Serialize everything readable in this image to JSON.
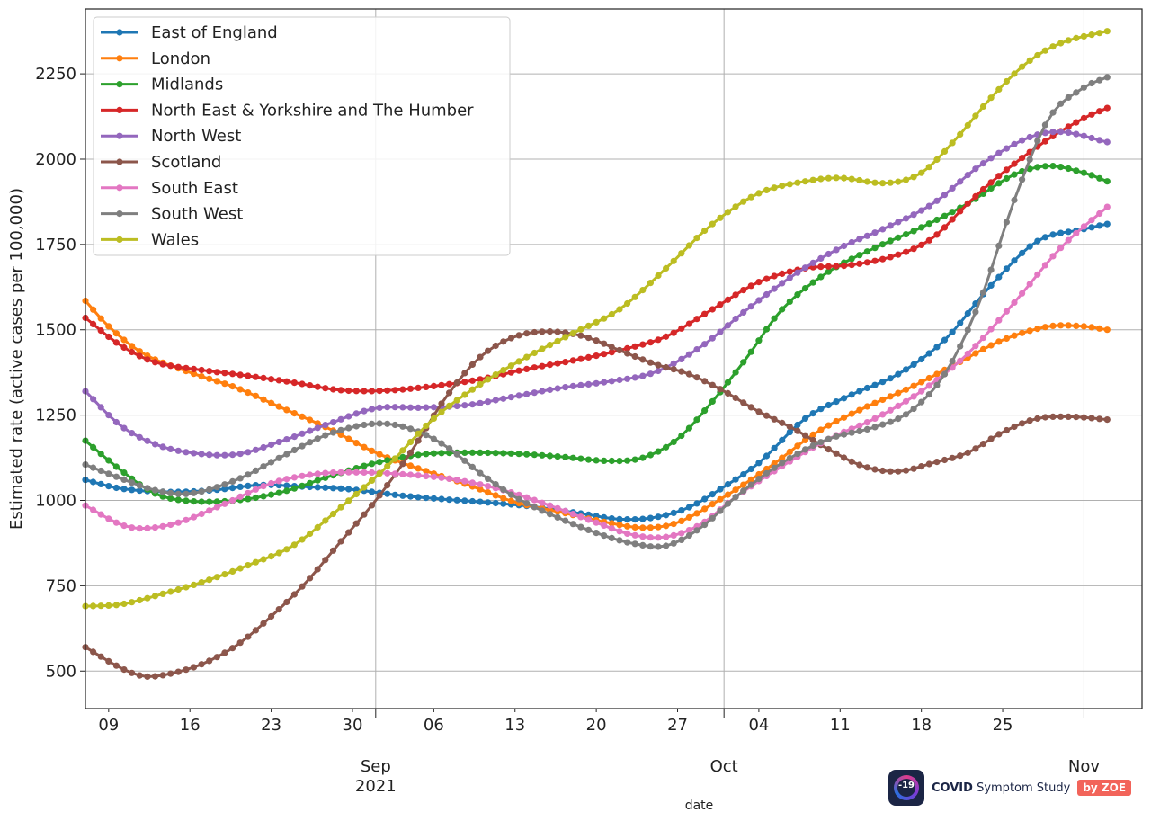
{
  "chart_data": {
    "type": "line",
    "title": "",
    "xlabel": "date",
    "ylabel": "Estimated rate (active cases per 100,000)",
    "x_start": "2021-08-07",
    "x_end": "2021-11-06",
    "ylim": [
      390,
      2440
    ],
    "yticks": [
      500,
      750,
      1000,
      1250,
      1500,
      1750,
      2000,
      2250
    ],
    "grid": true,
    "legend_position": "top-left",
    "x_minor_ticks": [
      {
        "date": "2021-08-09",
        "label": "09"
      },
      {
        "date": "2021-08-16",
        "label": "16"
      },
      {
        "date": "2021-08-23",
        "label": "23"
      },
      {
        "date": "2021-08-30",
        "label": "30"
      },
      {
        "date": "2021-09-06",
        "label": "06"
      },
      {
        "date": "2021-09-13",
        "label": "13"
      },
      {
        "date": "2021-09-20",
        "label": "20"
      },
      {
        "date": "2021-09-27",
        "label": "27"
      },
      {
        "date": "2021-10-04",
        "label": "04"
      },
      {
        "date": "2021-10-11",
        "label": "11"
      },
      {
        "date": "2021-10-18",
        "label": "18"
      },
      {
        "date": "2021-10-25",
        "label": "25"
      }
    ],
    "x_major_ticks": [
      {
        "date": "2021-09-01",
        "label": "Sep",
        "label2": "2021"
      },
      {
        "date": "2021-10-01",
        "label": "Oct",
        "label2": ""
      },
      {
        "date": "2021-11-01",
        "label": "Nov",
        "label2": ""
      }
    ],
    "series": [
      {
        "name": "East of England",
        "color": "#1f77b4",
        "points": [
          [
            "2021-08-07",
            1060
          ],
          [
            "2021-08-10",
            1035
          ],
          [
            "2021-08-14",
            1025
          ],
          [
            "2021-08-18",
            1030
          ],
          [
            "2021-08-22",
            1045
          ],
          [
            "2021-08-26",
            1040
          ],
          [
            "2021-08-30",
            1032
          ],
          [
            "2021-09-03",
            1015
          ],
          [
            "2021-09-07",
            1003
          ],
          [
            "2021-09-11",
            993
          ],
          [
            "2021-09-15",
            980
          ],
          [
            "2021-09-19",
            960
          ],
          [
            "2021-09-22",
            945
          ],
          [
            "2021-09-25",
            950
          ],
          [
            "2021-09-28",
            980
          ],
          [
            "2021-10-01",
            1040
          ],
          [
            "2021-10-04",
            1110
          ],
          [
            "2021-10-08",
            1240
          ],
          [
            "2021-10-12",
            1310
          ],
          [
            "2021-10-16",
            1370
          ],
          [
            "2021-10-20",
            1470
          ],
          [
            "2021-10-24",
            1630
          ],
          [
            "2021-10-28",
            1760
          ],
          [
            "2021-11-01",
            1795
          ],
          [
            "2021-11-03",
            1810
          ]
        ]
      },
      {
        "name": "London",
        "color": "#ff7f0e",
        "points": [
          [
            "2021-08-07",
            1585
          ],
          [
            "2021-08-09",
            1510
          ],
          [
            "2021-08-12",
            1430
          ],
          [
            "2021-08-16",
            1375
          ],
          [
            "2021-08-20",
            1330
          ],
          [
            "2021-08-24",
            1270
          ],
          [
            "2021-08-28",
            1210
          ],
          [
            "2021-09-01",
            1140
          ],
          [
            "2021-09-05",
            1090
          ],
          [
            "2021-09-09",
            1045
          ],
          [
            "2021-09-13",
            995
          ],
          [
            "2021-09-17",
            965
          ],
          [
            "2021-09-21",
            935
          ],
          [
            "2021-09-24",
            920
          ],
          [
            "2021-09-27",
            935
          ],
          [
            "2021-10-01",
            1010
          ],
          [
            "2021-10-05",
            1100
          ],
          [
            "2021-10-09",
            1200
          ],
          [
            "2021-10-13",
            1270
          ],
          [
            "2021-10-17",
            1330
          ],
          [
            "2021-10-21",
            1400
          ],
          [
            "2021-10-25",
            1470
          ],
          [
            "2021-10-29",
            1510
          ],
          [
            "2021-11-01",
            1510
          ],
          [
            "2021-11-03",
            1500
          ]
        ]
      },
      {
        "name": "Midlands",
        "color": "#2ca02c",
        "points": [
          [
            "2021-08-07",
            1175
          ],
          [
            "2021-08-10",
            1090
          ],
          [
            "2021-08-13",
            1020
          ],
          [
            "2021-08-16",
            998
          ],
          [
            "2021-08-20",
            1000
          ],
          [
            "2021-08-24",
            1025
          ],
          [
            "2021-08-28",
            1070
          ],
          [
            "2021-09-01",
            1110
          ],
          [
            "2021-09-05",
            1135
          ],
          [
            "2021-09-09",
            1140
          ],
          [
            "2021-09-13",
            1137
          ],
          [
            "2021-09-17",
            1128
          ],
          [
            "2021-09-21",
            1116
          ],
          [
            "2021-09-24",
            1125
          ],
          [
            "2021-09-27",
            1180
          ],
          [
            "2021-09-30",
            1290
          ],
          [
            "2021-10-03",
            1420
          ],
          [
            "2021-10-06",
            1560
          ],
          [
            "2021-10-10",
            1670
          ],
          [
            "2021-10-14",
            1740
          ],
          [
            "2021-10-18",
            1800
          ],
          [
            "2021-10-22",
            1870
          ],
          [
            "2021-10-26",
            1955
          ],
          [
            "2021-10-29",
            1980
          ],
          [
            "2021-11-01",
            1960
          ],
          [
            "2021-11-03",
            1935
          ]
        ]
      },
      {
        "name": "North East & Yorkshire and The Humber",
        "color": "#d62728",
        "points": [
          [
            "2021-08-07",
            1535
          ],
          [
            "2021-08-10",
            1455
          ],
          [
            "2021-08-13",
            1405
          ],
          [
            "2021-08-17",
            1382
          ],
          [
            "2021-08-21",
            1365
          ],
          [
            "2021-08-25",
            1345
          ],
          [
            "2021-08-29",
            1323
          ],
          [
            "2021-09-02",
            1322
          ],
          [
            "2021-09-06",
            1335
          ],
          [
            "2021-09-10",
            1355
          ],
          [
            "2021-09-14",
            1385
          ],
          [
            "2021-09-18",
            1410
          ],
          [
            "2021-09-22",
            1440
          ],
          [
            "2021-09-26",
            1480
          ],
          [
            "2021-09-30",
            1560
          ],
          [
            "2021-10-04",
            1640
          ],
          [
            "2021-10-08",
            1680
          ],
          [
            "2021-10-12",
            1690
          ],
          [
            "2021-10-16",
            1720
          ],
          [
            "2021-10-19",
            1770
          ],
          [
            "2021-10-22",
            1870
          ],
          [
            "2021-10-25",
            1960
          ],
          [
            "2021-10-29",
            2060
          ],
          [
            "2021-11-01",
            2120
          ],
          [
            "2021-11-03",
            2150
          ]
        ]
      },
      {
        "name": "North West",
        "color": "#9467bd",
        "points": [
          [
            "2021-08-07",
            1320
          ],
          [
            "2021-08-10",
            1220
          ],
          [
            "2021-08-13",
            1165
          ],
          [
            "2021-08-16",
            1140
          ],
          [
            "2021-08-20",
            1135
          ],
          [
            "2021-08-24",
            1175
          ],
          [
            "2021-08-28",
            1225
          ],
          [
            "2021-09-01",
            1270
          ],
          [
            "2021-09-05",
            1272
          ],
          [
            "2021-09-09",
            1280
          ],
          [
            "2021-09-13",
            1305
          ],
          [
            "2021-09-17",
            1330
          ],
          [
            "2021-09-21",
            1348
          ],
          [
            "2021-09-25",
            1375
          ],
          [
            "2021-09-29",
            1450
          ],
          [
            "2021-10-03",
            1560
          ],
          [
            "2021-10-07",
            1660
          ],
          [
            "2021-10-11",
            1740
          ],
          [
            "2021-10-15",
            1800
          ],
          [
            "2021-10-19",
            1870
          ],
          [
            "2021-10-23",
            1980
          ],
          [
            "2021-10-27",
            2060
          ],
          [
            "2021-10-30",
            2080
          ],
          [
            "2021-11-03",
            2050
          ]
        ]
      },
      {
        "name": "Scotland",
        "color": "#8c564b",
        "points": [
          [
            "2021-08-07",
            570
          ],
          [
            "2021-08-10",
            510
          ],
          [
            "2021-08-12",
            485
          ],
          [
            "2021-08-14",
            490
          ],
          [
            "2021-08-17",
            520
          ],
          [
            "2021-08-20",
            575
          ],
          [
            "2021-08-23",
            660
          ],
          [
            "2021-08-26",
            760
          ],
          [
            "2021-08-29",
            880
          ],
          [
            "2021-09-01",
            1000
          ],
          [
            "2021-09-04",
            1140
          ],
          [
            "2021-09-07",
            1300
          ],
          [
            "2021-09-10",
            1420
          ],
          [
            "2021-09-13",
            1480
          ],
          [
            "2021-09-16",
            1495
          ],
          [
            "2021-09-19",
            1480
          ],
          [
            "2021-09-22",
            1440
          ],
          [
            "2021-09-25",
            1400
          ],
          [
            "2021-09-28",
            1370
          ],
          [
            "2021-10-01",
            1320
          ],
          [
            "2021-10-04",
            1260
          ],
          [
            "2021-10-07",
            1210
          ],
          [
            "2021-10-10",
            1150
          ],
          [
            "2021-10-13",
            1100
          ],
          [
            "2021-10-16",
            1085
          ],
          [
            "2021-10-19",
            1110
          ],
          [
            "2021-10-22",
            1140
          ],
          [
            "2021-10-25",
            1200
          ],
          [
            "2021-10-28",
            1240
          ],
          [
            "2021-10-31",
            1245
          ],
          [
            "2021-11-03",
            1237
          ]
        ]
      },
      {
        "name": "South East",
        "color": "#e377c2",
        "points": [
          [
            "2021-08-07",
            985
          ],
          [
            "2021-08-10",
            930
          ],
          [
            "2021-08-12",
            918
          ],
          [
            "2021-08-15",
            935
          ],
          [
            "2021-08-19",
            990
          ],
          [
            "2021-08-23",
            1050
          ],
          [
            "2021-08-27",
            1078
          ],
          [
            "2021-08-31",
            1082
          ],
          [
            "2021-09-04",
            1075
          ],
          [
            "2021-09-08",
            1060
          ],
          [
            "2021-09-12",
            1030
          ],
          [
            "2021-09-16",
            985
          ],
          [
            "2021-09-20",
            935
          ],
          [
            "2021-09-23",
            900
          ],
          [
            "2021-09-26",
            893
          ],
          [
            "2021-09-29",
            930
          ],
          [
            "2021-10-02",
            1010
          ],
          [
            "2021-10-06",
            1100
          ],
          [
            "2021-10-10",
            1180
          ],
          [
            "2021-10-14",
            1240
          ],
          [
            "2021-10-18",
            1320
          ],
          [
            "2021-10-22",
            1430
          ],
          [
            "2021-10-26",
            1580
          ],
          [
            "2021-10-30",
            1740
          ],
          [
            "2021-11-03",
            1860
          ]
        ]
      },
      {
        "name": "South West",
        "color": "#7f7f7f",
        "points": [
          [
            "2021-08-07",
            1105
          ],
          [
            "2021-08-10",
            1065
          ],
          [
            "2021-08-13",
            1030
          ],
          [
            "2021-08-16",
            1020
          ],
          [
            "2021-08-20",
            1060
          ],
          [
            "2021-08-24",
            1130
          ],
          [
            "2021-08-28",
            1195
          ],
          [
            "2021-09-01",
            1225
          ],
          [
            "2021-09-04",
            1210
          ],
          [
            "2021-09-07",
            1160
          ],
          [
            "2021-09-10",
            1080
          ],
          [
            "2021-09-13",
            1010
          ],
          [
            "2021-09-16",
            960
          ],
          [
            "2021-09-20",
            905
          ],
          [
            "2021-09-23",
            875
          ],
          [
            "2021-09-26",
            867
          ],
          [
            "2021-09-29",
            920
          ],
          [
            "2021-10-02",
            1010
          ],
          [
            "2021-10-06",
            1110
          ],
          [
            "2021-10-10",
            1180
          ],
          [
            "2021-10-14",
            1215
          ],
          [
            "2021-10-17",
            1260
          ],
          [
            "2021-10-20",
            1370
          ],
          [
            "2021-10-23",
            1580
          ],
          [
            "2021-10-26",
            1880
          ],
          [
            "2021-10-29",
            2120
          ],
          [
            "2021-11-01",
            2210
          ],
          [
            "2021-11-03",
            2240
          ]
        ]
      },
      {
        "name": "Wales",
        "color": "#bcbd22",
        "points": [
          [
            "2021-08-07",
            690
          ],
          [
            "2021-08-10",
            695
          ],
          [
            "2021-08-13",
            720
          ],
          [
            "2021-08-17",
            760
          ],
          [
            "2021-08-21",
            810
          ],
          [
            "2021-08-25",
            870
          ],
          [
            "2021-08-29",
            980
          ],
          [
            "2021-09-02",
            1100
          ],
          [
            "2021-09-06",
            1240
          ],
          [
            "2021-09-10",
            1340
          ],
          [
            "2021-09-14",
            1420
          ],
          [
            "2021-09-18",
            1490
          ],
          [
            "2021-09-22",
            1560
          ],
          [
            "2021-09-26",
            1680
          ],
          [
            "2021-09-30",
            1810
          ],
          [
            "2021-10-04",
            1900
          ],
          [
            "2021-10-08",
            1935
          ],
          [
            "2021-10-11",
            1945
          ],
          [
            "2021-10-15",
            1930
          ],
          [
            "2021-10-18",
            1960
          ],
          [
            "2021-10-21",
            2060
          ],
          [
            "2021-10-24",
            2180
          ],
          [
            "2021-10-27",
            2280
          ],
          [
            "2021-10-30",
            2340
          ],
          [
            "2021-11-03",
            2375
          ]
        ]
      }
    ]
  },
  "logo": {
    "badge_text": "-19",
    "name_bold": "COVID",
    "name_rest": "Symptom Study",
    "by_text": "by ZOE"
  }
}
